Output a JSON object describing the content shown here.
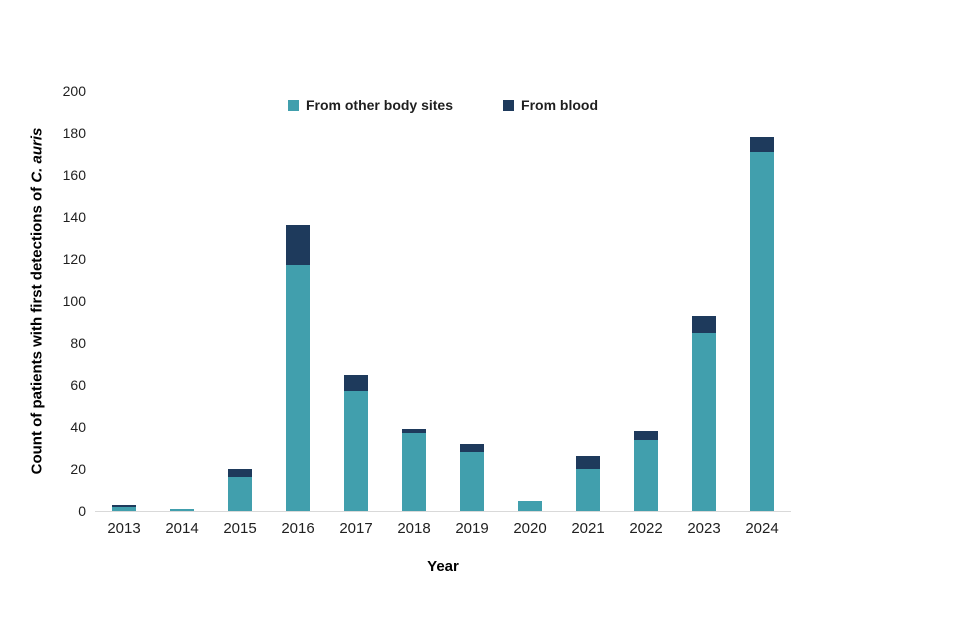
{
  "chart_data": {
    "type": "bar",
    "subtype": "stacked-vertical",
    "title": "",
    "xlabel": "Year",
    "ylabel_prefix": "Count of patients with first detections of ",
    "ylabel_italic": "C. auris",
    "categories": [
      "2013",
      "2014",
      "2015",
      "2016",
      "2017",
      "2018",
      "2019",
      "2020",
      "2021",
      "2022",
      "2023",
      "2024"
    ],
    "series": [
      {
        "name": "From other body sites",
        "color": "#419fad",
        "values": [
          2,
          1,
          16,
          117,
          57,
          37,
          28,
          5,
          20,
          34,
          85,
          171
        ]
      },
      {
        "name": "From blood",
        "color": "#1e3a5c",
        "values": [
          1,
          0,
          4,
          19,
          8,
          2,
          4,
          0,
          6,
          4,
          8,
          7
        ]
      }
    ],
    "ylim": [
      0,
      200
    ],
    "ytick_step": 20,
    "grid": false,
    "legend_position": "top-center",
    "axis_line_color": "#d9d9d9",
    "background_color": "#ffffff"
  }
}
